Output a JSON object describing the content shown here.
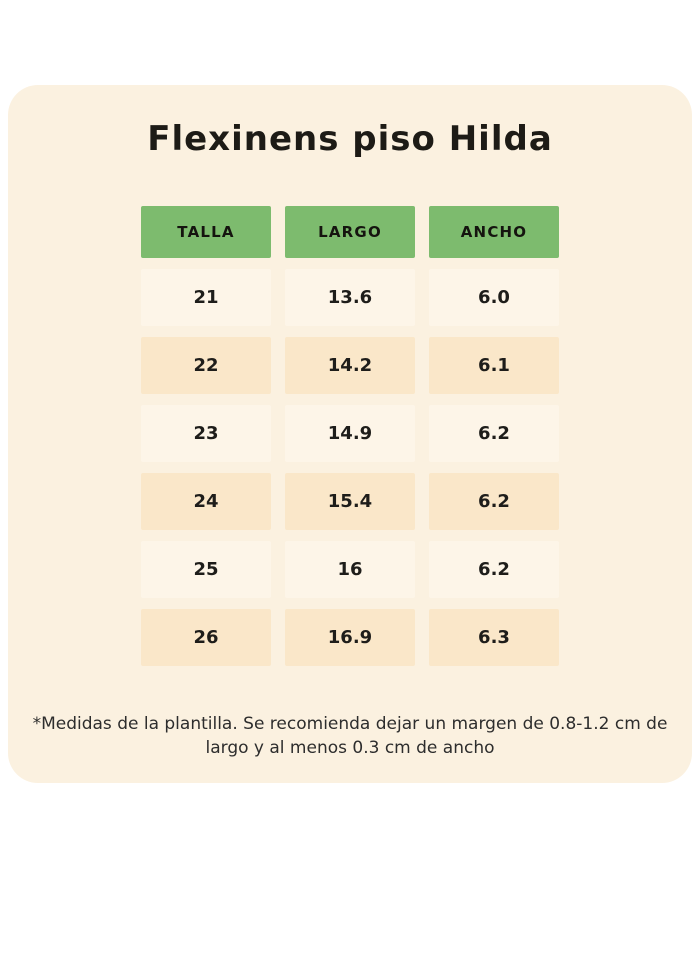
{
  "title": "Flexinens piso Hilda",
  "chart_data": {
    "type": "table",
    "title": "Flexinens piso Hilda",
    "columns": [
      "TALLA",
      "LARGO",
      "ANCHO"
    ],
    "rows": [
      [
        "21",
        "13.6",
        "6.0"
      ],
      [
        "22",
        "14.2",
        "6.1"
      ],
      [
        "23",
        "14.9",
        "6.2"
      ],
      [
        "24",
        "15.4",
        "6.2"
      ],
      [
        "25",
        "16",
        "6.2"
      ],
      [
        "26",
        "16.9",
        "6.3"
      ]
    ],
    "units": "cm",
    "layout": "header row green, data rows alternate cream/peach, centered on cream rounded card"
  },
  "footnote": "*Medidas de la plantilla. Se recomienda dejar un margen de 0.8-1.2 cm de largo y al menos 0.3 cm de ancho",
  "colors": {
    "page_bg": "#ffffff",
    "card_bg": "#fbf1e0",
    "header_bg": "#7dbb6e",
    "row_light": "#fdf5e8",
    "row_dark": "#fae7c9",
    "text": "#1e1d1a"
  }
}
